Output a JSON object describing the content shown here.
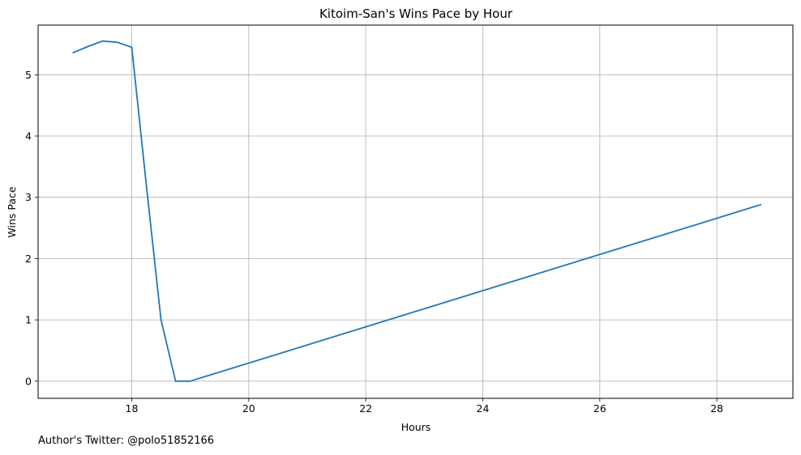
{
  "chart_data": {
    "type": "line",
    "title": "Kitoim-San's Wins Pace by Hour",
    "xlabel": "Hours",
    "ylabel": "Wins Pace",
    "xlim": [
      16.4,
      29.3
    ],
    "ylim": [
      -0.28,
      5.81
    ],
    "xticks": [
      18,
      20,
      22,
      24,
      26,
      28
    ],
    "yticks": [
      0,
      1,
      2,
      3,
      4,
      5
    ],
    "grid": true,
    "line_color": "#1f77b4",
    "series": [
      {
        "x": [
          17.0,
          17.25,
          17.5,
          17.75,
          18.0,
          18.25,
          18.5,
          18.75,
          19.0,
          28.75
        ],
        "y": [
          5.36,
          5.46,
          5.55,
          5.53,
          5.45,
          3.2,
          1.0,
          0.0,
          0.0,
          2.88
        ]
      }
    ]
  },
  "footnote": "Author's Twitter: @polo51852166"
}
